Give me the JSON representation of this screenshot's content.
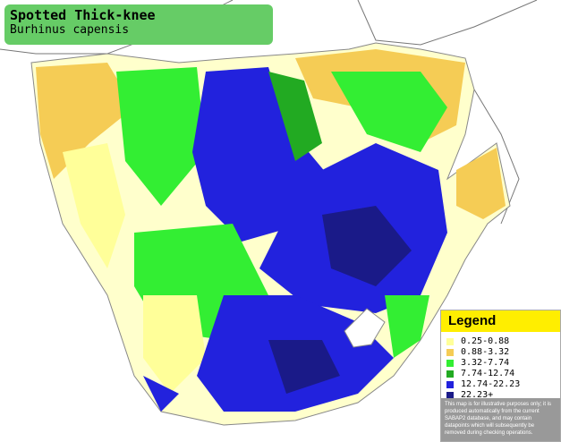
{
  "header": {
    "title": "Spotted Thick-knee",
    "subtitle": "Burhinus capensis"
  },
  "legend": {
    "title": "Legend",
    "items": [
      {
        "label": "0.25-0.88",
        "color": "#ffff99"
      },
      {
        "label": "0.88-3.32",
        "color": "#f5cc55"
      },
      {
        "label": "3.32-7.74",
        "color": "#33ee33"
      },
      {
        "label": "7.74-12.74",
        "color": "#22aa22"
      },
      {
        "label": "12.74-22.23",
        "color": "#2222dd"
      },
      {
        "label": "22.23+",
        "color": "#1a1a88"
      }
    ],
    "note": "This map is for illustrative purposes only; it is produced automatically from the current SABAP2 database, and may contain datapoints which will subsequently be removed during checking operations."
  }
}
